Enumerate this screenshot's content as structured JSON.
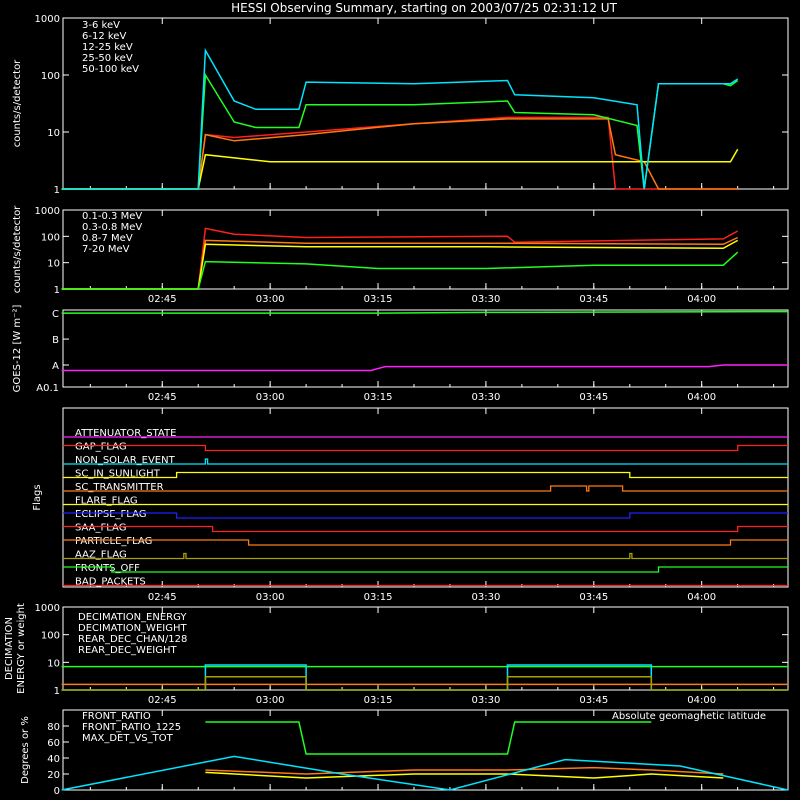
{
  "title": "HESSI Observing Summary, starting on 2003/07/25 02:31:12 UT",
  "x_ticks": [
    "02:45",
    "03:00",
    "03:15",
    "03:30",
    "03:45",
    "04:00"
  ],
  "colors": {
    "red": "#ff2020",
    "orange": "#ff7a10",
    "yellow": "#ffff00",
    "green": "#20ff20",
    "cyan": "#00e5ff",
    "magenta": "#ff20ff",
    "blue": "#2020ff",
    "olive": "#a8a000",
    "white": "#ffffff"
  },
  "chart_data": [
    {
      "type": "line",
      "panel": "lo-energy",
      "ylabel": "counts/s/detector",
      "yscale": "log",
      "ylim": [
        1,
        1000
      ],
      "yticks": [
        "1",
        "10",
        "100",
        "1000"
      ],
      "series": [
        {
          "name": "3-6 keV",
          "color": "#ff2020",
          "x": [
            "02:31",
            "02:50",
            "02:51",
            "02:55",
            "03:05",
            "03:20",
            "03:33",
            "03:40",
            "03:47",
            "03:48",
            "03:52",
            "03:54",
            "04:03",
            "04:04",
            "04:05"
          ],
          "values": [
            1,
            1,
            9,
            8,
            10,
            14,
            18,
            18,
            18,
            1,
            1,
            1,
            1,
            1,
            1
          ]
        },
        {
          "name": "6-12 keV",
          "color": "#ff7a10",
          "x": [
            "02:31",
            "02:50",
            "02:51",
            "02:55",
            "03:05",
            "03:20",
            "03:33",
            "03:40",
            "03:47",
            "03:48",
            "03:52",
            "03:54",
            "04:03",
            "04:04",
            "04:05"
          ],
          "values": [
            1,
            1,
            9,
            7,
            9,
            14,
            17,
            17,
            17,
            4,
            3,
            1,
            1,
            1,
            1
          ]
        },
        {
          "name": "12-25 keV",
          "color": "#ffff00",
          "x": [
            "02:31",
            "02:50",
            "02:51",
            "03:00",
            "03:15",
            "03:30",
            "03:45",
            "03:52",
            "03:54",
            "04:00",
            "04:04",
            "04:05"
          ],
          "values": [
            1,
            1,
            4,
            3,
            3,
            3,
            3,
            3,
            3,
            3,
            3,
            5
          ]
        },
        {
          "name": "25-50 keV",
          "color": "#20ff20",
          "x": [
            "02:31",
            "02:50",
            "02:51",
            "02:55",
            "02:58",
            "03:04",
            "03:05",
            "03:20",
            "03:33",
            "03:34",
            "03:45",
            "03:51",
            "03:52",
            "03:54",
            "04:03",
            "04:04",
            "04:05"
          ],
          "values": [
            1,
            1,
            100,
            15,
            12,
            12,
            30,
            30,
            35,
            22,
            20,
            13,
            1,
            70,
            70,
            65,
            80
          ]
        },
        {
          "name": "50-100 keV",
          "color": "#00e5ff",
          "x": [
            "02:31",
            "02:50",
            "02:51",
            "02:55",
            "02:58",
            "03:04",
            "03:05",
            "03:20",
            "03:33",
            "03:34",
            "03:45",
            "03:51",
            "03:52",
            "03:54",
            "04:03",
            "04:04",
            "04:05"
          ],
          "values": [
            1,
            1,
            270,
            35,
            25,
            25,
            75,
            70,
            80,
            45,
            40,
            30,
            1,
            70,
            70,
            70,
            85
          ]
        }
      ]
    },
    {
      "type": "line",
      "panel": "hi-energy",
      "ylabel": "counts/s/detector",
      "yscale": "log",
      "ylim": [
        1,
        1000
      ],
      "yticks": [
        "1",
        "10",
        "100",
        "1000"
      ],
      "series": [
        {
          "name": "0.1-0.3 MeV",
          "color": "#ff2020",
          "x": [
            "02:31",
            "02:50",
            "02:51",
            "02:55",
            "03:05",
            "03:33",
            "03:34",
            "04:03",
            "04:05"
          ],
          "values": [
            1,
            1,
            200,
            120,
            90,
            100,
            60,
            80,
            160
          ]
        },
        {
          "name": "0.3-0.8 MeV",
          "color": "#ff7a10",
          "x": [
            "02:31",
            "02:50",
            "02:51",
            "03:05",
            "03:30",
            "04:03",
            "04:05"
          ],
          "values": [
            1,
            1,
            70,
            55,
            55,
            50,
            90
          ]
        },
        {
          "name": "0.8-7 MeV",
          "color": "#ffff00",
          "x": [
            "02:31",
            "02:50",
            "02:51",
            "03:05",
            "03:30",
            "04:03",
            "04:05"
          ],
          "values": [
            1,
            1,
            50,
            40,
            40,
            35,
            70
          ]
        },
        {
          "name": "7-20 MeV",
          "color": "#20ff20",
          "x": [
            "02:31",
            "02:50",
            "02:51",
            "03:05",
            "03:15",
            "03:30",
            "03:45",
            "04:03",
            "04:05"
          ],
          "values": [
            1,
            1,
            11,
            9,
            6,
            6,
            8,
            8,
            25
          ]
        }
      ]
    },
    {
      "type": "line",
      "panel": "goes",
      "ylabel": "GOES-12 [W m⁻²]",
      "ylim": [
        0.1,
        5
      ],
      "yticks": [
        "A0.1",
        "A",
        "B",
        "C"
      ],
      "series": [
        {
          "name": "",
          "color": "#20ff20",
          "x": [
            "02:31",
            "03:15",
            "03:30",
            "04:12"
          ],
          "values": [
            4.8,
            4.8,
            4.85,
            4.9
          ]
        },
        {
          "name": "",
          "color": "#ff20ff",
          "x": [
            "02:31",
            "03:14",
            "03:16",
            "04:01",
            "04:03",
            "04:12"
          ],
          "values": [
            1.15,
            1.15,
            1.4,
            1.4,
            1.5,
            1.5
          ]
        }
      ]
    }
  ],
  "flags_panel": {
    "ylabel": "Flags",
    "rows": [
      {
        "label": "ATTENUATOR_STATE",
        "color": "#ff20ff",
        "steps": [
          [
            "02:31",
            0
          ]
        ]
      },
      {
        "label": "GAP_FLAG",
        "color": "#ff2020",
        "steps": [
          [
            "02:31",
            1
          ],
          [
            "02:51",
            0
          ],
          [
            "04:05",
            1
          ]
        ]
      },
      {
        "label": "NON_SOLAR_EVENT",
        "color": "#00e5ff",
        "steps": [
          [
            "02:31",
            0
          ],
          [
            "02:51",
            1
          ],
          [
            "02:51.3",
            0
          ]
        ]
      },
      {
        "label": "SC_IN_SUNLIGHT",
        "color": "#ffff00",
        "steps": [
          [
            "02:31",
            0
          ],
          [
            "02:47",
            1
          ],
          [
            "03:50",
            0
          ]
        ]
      },
      {
        "label": "SC_TRANSMITTER",
        "color": "#ff7a10",
        "steps": [
          [
            "02:31",
            0
          ],
          [
            "03:39",
            1
          ],
          [
            "03:44",
            0
          ],
          [
            "03:44.3",
            1
          ],
          [
            "03:49",
            0
          ]
        ]
      },
      {
        "label": "FLARE_FLAG",
        "color": "#ffff00",
        "steps": [
          [
            "02:31",
            0
          ]
        ]
      },
      {
        "label": "ECLIPSE_FLAG",
        "color": "#2020ff",
        "steps": [
          [
            "02:31",
            1
          ],
          [
            "02:47",
            0
          ],
          [
            "03:50",
            1
          ]
        ]
      },
      {
        "label": "SAA_FLAG",
        "color": "#ff2020",
        "steps": [
          [
            "02:31",
            1
          ],
          [
            "02:52",
            0
          ],
          [
            "04:05",
            1
          ]
        ]
      },
      {
        "label": "PARTICLE_FLAG",
        "color": "#ff7a10",
        "steps": [
          [
            "02:31",
            1
          ],
          [
            "02:57",
            0
          ],
          [
            "04:04",
            1
          ]
        ]
      },
      {
        "label": "AAZ_FLAG",
        "color": "#a8a000",
        "steps": [
          [
            "02:31",
            0
          ],
          [
            "02:48",
            1
          ],
          [
            "02:48.3",
            0
          ],
          [
            "03:50",
            1
          ],
          [
            "03:50.3",
            0
          ]
        ]
      },
      {
        "label": "FRONTS_OFF",
        "color": "#20ff20",
        "steps": [
          [
            "02:31",
            1
          ],
          [
            "02:38",
            0
          ],
          [
            "03:54",
            1
          ]
        ]
      },
      {
        "label": "BAD_PACKETS",
        "color": "#ff2020",
        "steps": [
          [
            "02:31",
            0
          ]
        ]
      }
    ]
  },
  "decimation_panel": {
    "ylabel": "DECIMATION ENERGY or weight",
    "yscale": "log",
    "ylim": [
      1,
      1000
    ],
    "yticks": [
      "1",
      "10",
      "100",
      "1000"
    ],
    "series": [
      {
        "name": "DECIMATION_ENERGY",
        "color": "#20ff20",
        "x": [
          "02:31",
          "04:12"
        ],
        "values": [
          7,
          7
        ]
      },
      {
        "name": "DECIMATION_WEIGHT",
        "color": "#ff7a10",
        "x": [
          "02:31",
          "04:12"
        ],
        "values": [
          1.6,
          1.6
        ]
      },
      {
        "name": "REAR_DEC_CHAN/128",
        "color": "#00e5ff",
        "x": [
          "02:31",
          "02:51",
          "02:51",
          "03:05",
          "03:05",
          "03:33",
          "03:33",
          "03:53",
          "03:53",
          "04:12"
        ],
        "values": [
          1,
          1,
          8,
          8,
          1,
          1,
          8,
          8,
          1,
          1
        ]
      },
      {
        "name": "REAR_DEC_WEIGHT",
        "color": "#a8a000",
        "x": [
          "02:31",
          "02:51",
          "02:51",
          "03:05",
          "03:05",
          "03:33",
          "03:33",
          "03:53",
          "03:53",
          "04:12"
        ],
        "values": [
          1,
          1,
          3,
          3,
          1,
          1,
          3,
          3,
          1,
          1
        ]
      }
    ]
  },
  "ratio_panel": {
    "ylabel": "Degrees or %",
    "ylim": [
      0,
      100
    ],
    "yticks": [
      "0",
      "20",
      "40",
      "60",
      "80"
    ],
    "annotation": "Absolute geomagnetic latitude",
    "series": [
      {
        "name": "FRONT_RATIO",
        "color": "#ffff00",
        "x": [
          "02:51",
          "03:05",
          "03:20",
          "03:33",
          "03:45",
          "03:53",
          "04:03"
        ],
        "values": [
          22,
          15,
          20,
          20,
          15,
          20,
          15
        ]
      },
      {
        "name": "FRONT_RATIO_1225",
        "color": "#20ff20",
        "x": [
          "02:51",
          "03:04",
          "03:05",
          "03:33",
          "03:34",
          "03:53"
        ],
        "values": [
          85,
          85,
          45,
          45,
          85,
          85
        ]
      },
      {
        "name": "MAX_DET_VS_TOT",
        "color": "#ff7a10",
        "x": [
          "02:51",
          "03:05",
          "03:20",
          "03:33",
          "03:45",
          "03:53",
          "04:03"
        ],
        "values": [
          25,
          20,
          25,
          25,
          28,
          25,
          20
        ]
      },
      {
        "name": "Absolute geomagnetic latitude",
        "color": "#00e5ff",
        "x": [
          "02:31",
          "02:55",
          "03:10",
          "03:25",
          "03:41",
          "03:57",
          "04:12"
        ],
        "values": [
          0,
          42,
          20,
          0,
          38,
          30,
          0
        ]
      }
    ]
  }
}
